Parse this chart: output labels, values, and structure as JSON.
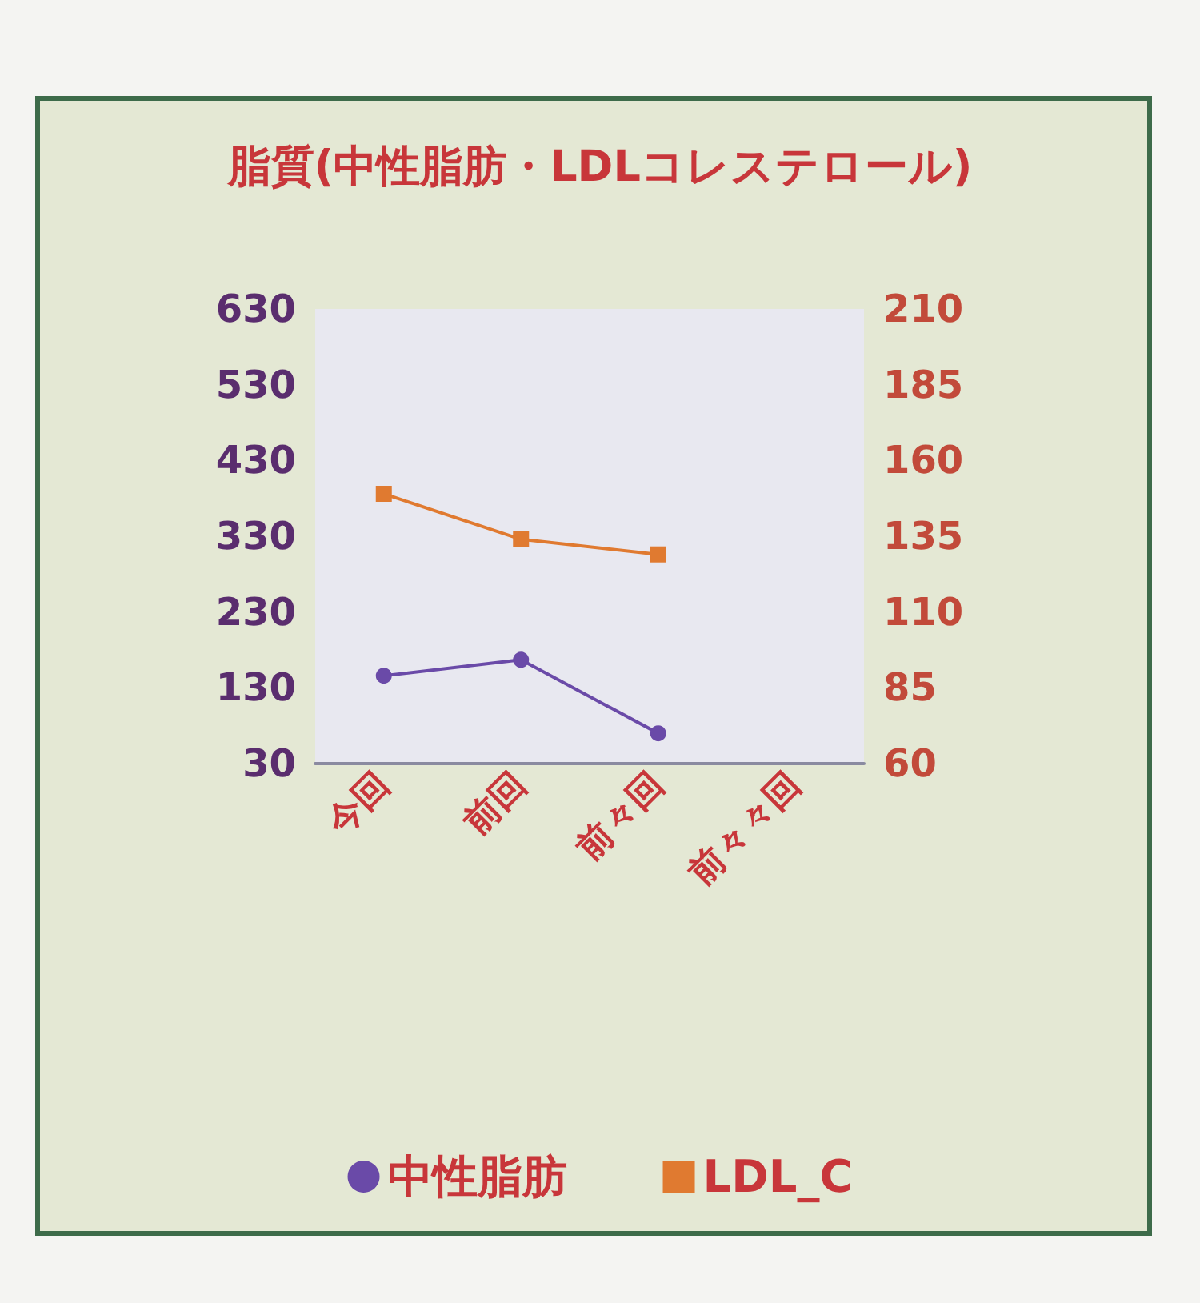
{
  "chart_data": {
    "type": "line",
    "title": "脂質(中性脂肪・LDLコレステロール)",
    "categories": [
      "今回",
      "前回",
      "前々回",
      "前々々回"
    ],
    "series": [
      {
        "name": "中性脂肪",
        "color": "#6a4aa8",
        "marker": "circle",
        "values": [
          146,
          167,
          70,
          null
        ]
      },
      {
        "name": "LDL_C",
        "color": "#e07a30",
        "marker": "square",
        "axis": "y2",
        "values": [
          149,
          134,
          129,
          null
        ]
      }
    ],
    "ylim": [
      30,
      630
    ],
    "yticks": [
      30,
      130,
      230,
      330,
      430,
      530,
      630
    ],
    "y2lim": [
      60,
      210
    ],
    "y2ticks": [
      60,
      85,
      110,
      135,
      160,
      185,
      210
    ],
    "grid": false,
    "legend": "bottom"
  }
}
